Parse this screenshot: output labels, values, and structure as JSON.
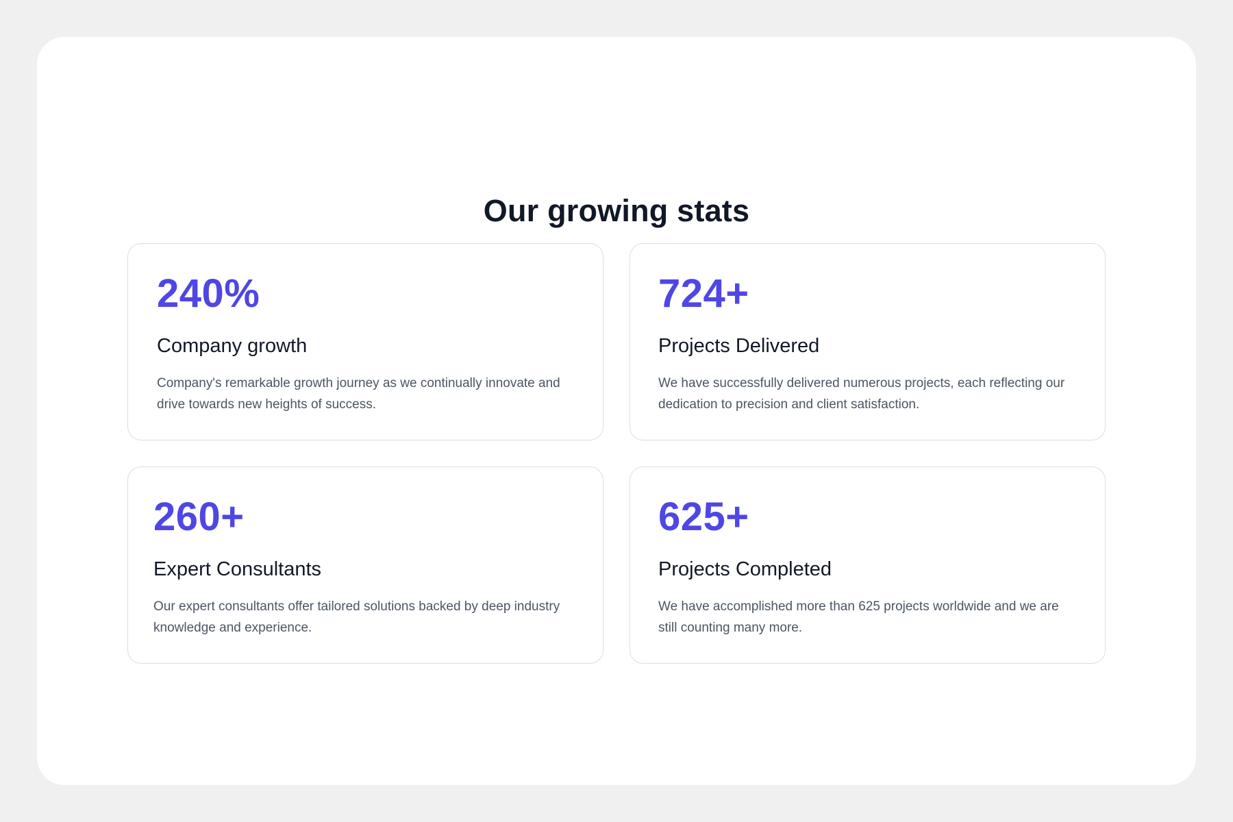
{
  "section": {
    "title": "Our growing stats"
  },
  "colors": {
    "accent": "#4f46e5",
    "heading": "#111827",
    "body_text": "#4b5563",
    "card_border": "#dcdde3",
    "page_background": "#f0f0f0",
    "panel_background": "#ffffff"
  },
  "stats": [
    {
      "value": "240%",
      "label": "Company growth",
      "description": "Company's remarkable growth journey as we continually innovate and drive towards new heights of success."
    },
    {
      "value": "724+",
      "label": "Projects Delivered",
      "description": "We have successfully delivered numerous projects, each reflecting our dedication to precision and client satisfaction."
    },
    {
      "value": "260+",
      "label": "Expert Consultants",
      "description": "Our expert consultants offer tailored solutions backed by deep industry knowledge and experience."
    },
    {
      "value": "625+",
      "label": "Projects Completed",
      "description": "We have accomplished more than 625 projects worldwide and we are still counting many more."
    }
  ]
}
